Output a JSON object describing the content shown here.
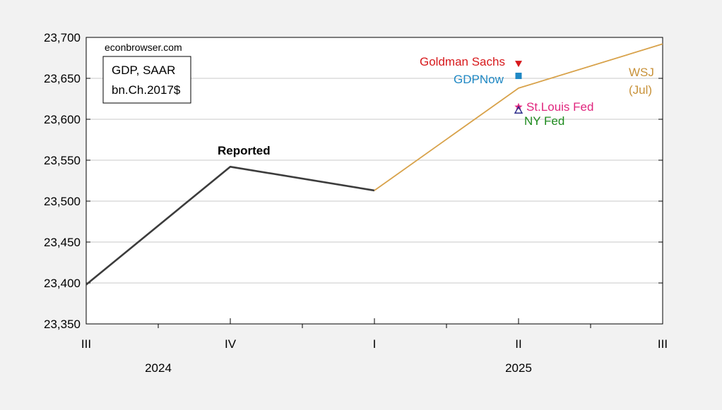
{
  "chart_data": {
    "type": "line",
    "source_note": "econbrowser.com",
    "legend_box": [
      "GDP, SAAR",
      "bn.Ch.2017$"
    ],
    "x_ticks": [
      "III",
      "IV",
      "I",
      "II",
      "III"
    ],
    "year_labels": [
      {
        "text": "2024",
        "x": 0.5
      },
      {
        "text": "2025",
        "x": 3.0
      }
    ],
    "ylim": [
      23350,
      23700
    ],
    "yticks": [
      23350,
      23400,
      23450,
      23500,
      23550,
      23600,
      23650,
      23700
    ],
    "ytick_labels": [
      "23,350",
      "23,400",
      "23,450",
      "23,500",
      "23,550",
      "23,600",
      "23,650",
      "23,700"
    ],
    "grid": true,
    "series": [
      {
        "name": "Reported",
        "color": "#3c3c3c",
        "x": [
          0,
          1,
          2
        ],
        "values": [
          23398,
          23542,
          23513
        ]
      },
      {
        "name": "WSJ (Jul)",
        "color": "#d8a24a",
        "x": [
          2,
          3,
          4
        ],
        "values": [
          23513,
          23638,
          23692
        ]
      }
    ],
    "point_forecasts": [
      {
        "name": "Goldman Sachs",
        "x": 3,
        "value": 23668,
        "marker": "triangle-down",
        "color": "#d7191c"
      },
      {
        "name": "GDPNow",
        "x": 3,
        "value": 23653,
        "marker": "square",
        "color": "#1f88c4"
      },
      {
        "name": "St.Louis Fed",
        "x": 3,
        "value": 23615,
        "marker": "star",
        "color": "#e0267e"
      },
      {
        "name": "NY Fed",
        "x": 3,
        "value": 23611,
        "marker": "triangle-up",
        "color": "#2a2a8a"
      }
    ],
    "annotations": [
      {
        "text": "Reported",
        "color": "#000000"
      },
      {
        "text": "Goldman Sachs",
        "color": "#d7191c"
      },
      {
        "text": "GDPNow",
        "color": "#1f88c4"
      },
      {
        "text": "WSJ",
        "color": "#c8923a"
      },
      {
        "text": "(Jul)",
        "color": "#c8923a"
      },
      {
        "text": "St.Louis Fed",
        "color": "#e0267e"
      },
      {
        "text": "NY Fed",
        "color": "#1e8a1e"
      }
    ]
  }
}
